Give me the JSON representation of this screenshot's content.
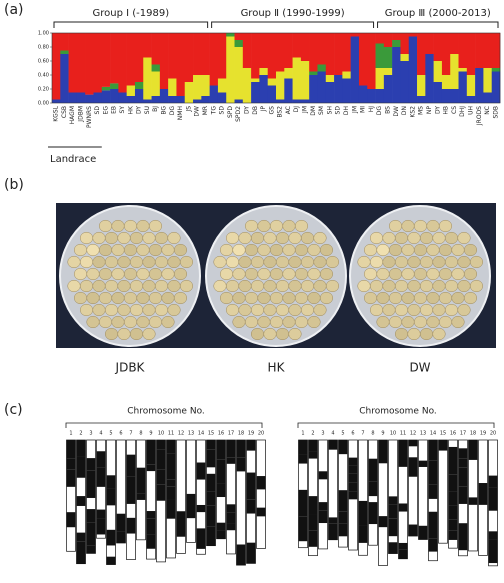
{
  "panel_labels": [
    "(a)",
    "(b)",
    "(c)"
  ],
  "chart_data": {
    "type": "stacked_bar",
    "groups": [
      "Group Ⅰ (-1989)",
      "Group Ⅱ (1990-1999)",
      "Group Ⅲ (2000-2013)"
    ],
    "annotation": "Landrace",
    "categories": [
      "KGSL",
      "CSB",
      "HAGM",
      "JDBM",
      "PWNRS",
      "SD",
      "EG",
      "EB",
      "SY",
      "HK",
      "DY",
      "SU",
      "BJ",
      "BG",
      "DG",
      "NMH",
      "JS",
      "DW",
      "MR",
      "TG",
      "SD",
      "SPD",
      "SPD2",
      "DY",
      "DB",
      "JP",
      "GS",
      "BS2",
      "AC",
      "DJ",
      "JM",
      "DM",
      "SM",
      "SH",
      "SD",
      "DH",
      "JM",
      "MI",
      "HJ",
      "DG",
      "BS",
      "DW",
      "DN",
      "KS2",
      "MS",
      "NP",
      "DY",
      "HB",
      "CS",
      "DHJ",
      "UH",
      "JRODS",
      "NC",
      "SDB"
    ],
    "series": [
      {
        "color": "#2b3fb0",
        "values": [
          0.05,
          0.7,
          0.15,
          0.15,
          0.12,
          0.15,
          0.18,
          0.2,
          0.15,
          0.1,
          0.2,
          0.05,
          0.1,
          0.2,
          0.1,
          0.1,
          0,
          0.05,
          0.1,
          0.25,
          0.15,
          0,
          0.05,
          0,
          0.3,
          0.4,
          0.25,
          0.05,
          0.35,
          0.05,
          0.05,
          0.4,
          0.45,
          0.3,
          0.4,
          0.35,
          0.95,
          0.25,
          0.2,
          0.2,
          0.4,
          0.8,
          0.6,
          0.95,
          0.1,
          0.7,
          0.3,
          0.2,
          0.2,
          0.45,
          0.1,
          0.5,
          0.15,
          0.45
        ]
      },
      {
        "color": "#e6e22e",
        "values": [
          0,
          0,
          0,
          0,
          0,
          0,
          0,
          0,
          0,
          0.15,
          0,
          0.6,
          0.35,
          0,
          0.25,
          0,
          0.3,
          0.35,
          0.3,
          0,
          0.2,
          0.95,
          0.75,
          0.5,
          0.05,
          0.1,
          0.1,
          0.4,
          0.15,
          0.6,
          0.55,
          0,
          0,
          0.1,
          0,
          0.1,
          0,
          0,
          0,
          0.3,
          0.1,
          0,
          0.1,
          0,
          0.3,
          0,
          0.3,
          0.2,
          0.5,
          0.05,
          0.3,
          0,
          0.35,
          0
        ]
      },
      {
        "color": "#3a9a3a",
        "values": [
          0,
          0.05,
          0,
          0,
          0,
          0,
          0.05,
          0.08,
          0,
          0,
          0.1,
          0,
          0.1,
          0,
          0,
          0,
          0,
          0,
          0,
          0,
          0,
          0.05,
          0.1,
          0,
          0,
          0,
          0,
          0,
          0,
          0,
          0,
          0.05,
          0.1,
          0,
          0,
          0,
          0,
          0,
          0,
          0.35,
          0.3,
          0.1,
          0,
          0,
          0,
          0,
          0,
          0,
          0,
          0,
          0,
          0,
          0,
          0.05
        ]
      },
      {
        "color": "#e8201c",
        "values": [
          0.95,
          0.25,
          0.85,
          0.85,
          0.88,
          0.85,
          0.77,
          0.72,
          0.85,
          0.75,
          0.7,
          0.35,
          0.45,
          0.8,
          0.65,
          0.9,
          0.7,
          0.6,
          0.6,
          0.75,
          0.65,
          0,
          0.1,
          0.5,
          0.65,
          0.5,
          0.65,
          0.55,
          0.5,
          0.35,
          0.4,
          0.55,
          0.45,
          0.6,
          0.6,
          0.55,
          0.05,
          0.75,
          0.8,
          0.15,
          0.2,
          0.1,
          0.3,
          0.05,
          0.6,
          0.3,
          0.4,
          0.6,
          0.3,
          0.5,
          0.6,
          0.5,
          0.5,
          0.5
        ]
      }
    ],
    "ylim": [
      0,
      1
    ],
    "yticks": [
      {
        "value": 0,
        "label": "0.00"
      },
      {
        "value": 0.2,
        "label": "0.20"
      },
      {
        "value": 0.4,
        "label": "0.40"
      },
      {
        "value": 0.6,
        "label": "0.60"
      },
      {
        "value": 0.8,
        "label": "0.80"
      },
      {
        "value": 1,
        "label": "1.00"
      }
    ]
  },
  "photo": {
    "labels": [
      "JDBK",
      "HK",
      "DW"
    ]
  },
  "genotype": {
    "panels": [
      {
        "title": "Chromosome No.",
        "numbers": [
          1,
          2,
          3,
          4,
          5,
          6,
          7,
          8,
          9,
          10,
          11,
          12,
          13,
          14,
          15,
          16,
          17,
          18,
          19,
          20
        ]
      },
      {
        "title": "Chromosome No.",
        "numbers": [
          1,
          2,
          3,
          4,
          5,
          6,
          7,
          8,
          9,
          10,
          11,
          12,
          13,
          14,
          15,
          16,
          17,
          18,
          19,
          20
        ]
      }
    ]
  }
}
